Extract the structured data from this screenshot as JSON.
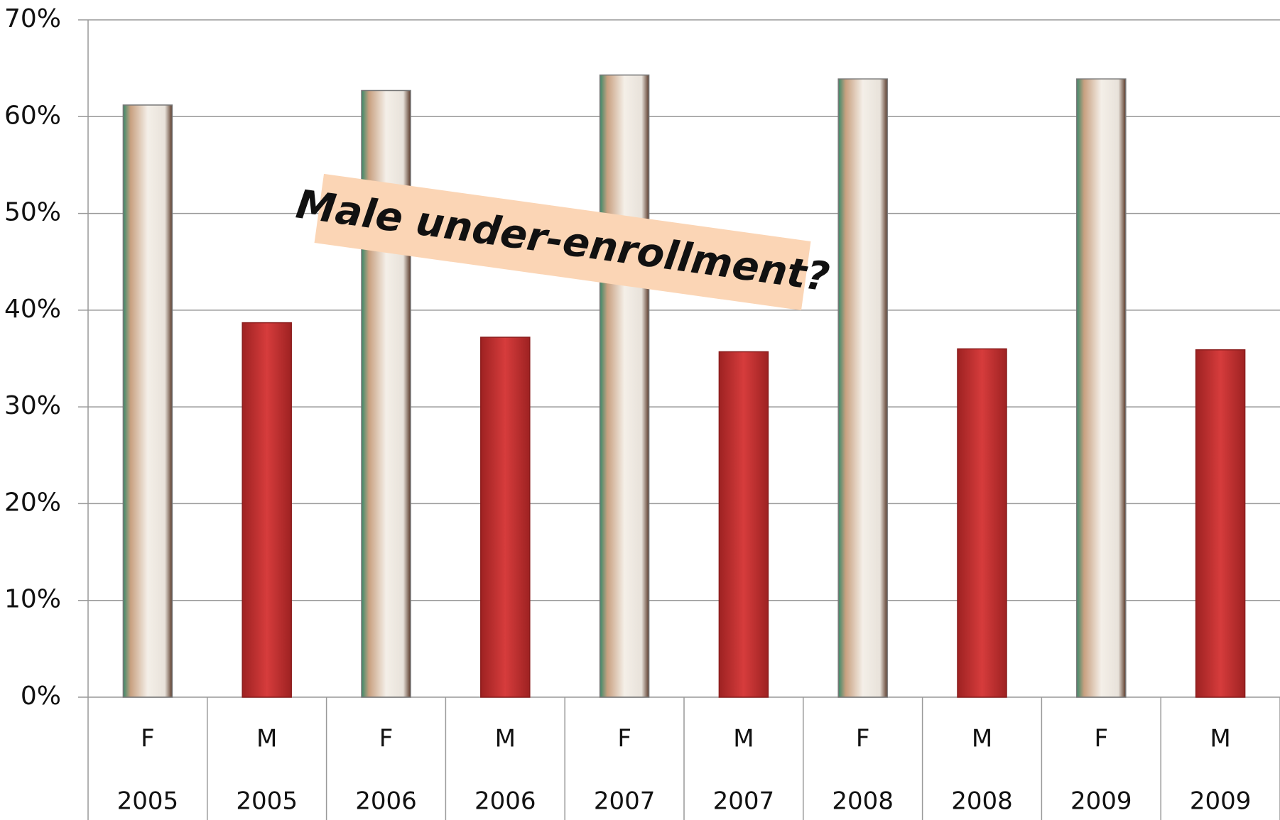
{
  "chart_data": {
    "type": "bar",
    "categories": [
      "F",
      "M",
      "F",
      "M",
      "F",
      "M",
      "F",
      "M",
      "F",
      "M"
    ],
    "years": [
      "2005",
      "2005",
      "2006",
      "2006",
      "2007",
      "2007",
      "2008",
      "2008",
      "2009",
      "2009"
    ],
    "values": [
      61.2,
      38.7,
      62.7,
      37.2,
      64.3,
      35.7,
      63.9,
      36.0,
      63.9,
      35.9
    ],
    "colors": [
      "#dcecef",
      "#cc3434",
      "#dcecef",
      "#cc3434",
      "#dcecef",
      "#cc3434",
      "#dcecef",
      "#cc3434",
      "#dcecef",
      "#cc3434"
    ],
    "ylim": [
      0,
      70
    ],
    "yticks": [
      {
        "value": 0,
        "label": "0%"
      },
      {
        "value": 10,
        "label": "10%"
      },
      {
        "value": 20,
        "label": "20%"
      },
      {
        "value": 30,
        "label": "30%"
      },
      {
        "value": 40,
        "label": "40%"
      },
      {
        "value": 50,
        "label": "50%"
      },
      {
        "value": 60,
        "label": "60%"
      },
      {
        "value": 70,
        "label": "70%"
      }
    ],
    "grid": true,
    "annotation": "Male under-enrollment?"
  }
}
